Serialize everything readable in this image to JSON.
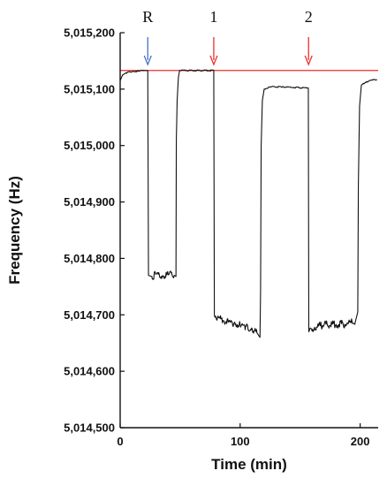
{
  "chart_data": {
    "type": "line",
    "xlabel": "Time (min)",
    "ylabel": "Frequency (Hz)",
    "xlim": [
      0,
      215
    ],
    "ylim": [
      5014500,
      5015200
    ],
    "x_ticks": [
      0,
      100,
      200
    ],
    "x_tick_labels": [
      "0",
      "100",
      "200"
    ],
    "y_ticks": [
      5014500,
      5014600,
      5014700,
      5014800,
      5014900,
      5015000,
      5015100,
      5015200
    ],
    "y_tick_labels": [
      "5,014,500",
      "5,014,600",
      "5,014,700",
      "5,014,800",
      "5,014,900",
      "5,015,000",
      "5,015,100",
      "5,015,200"
    ],
    "reference_line": {
      "y": 5015133,
      "color": "#e8312d"
    },
    "annotations": [
      {
        "label": "R",
        "x": 23,
        "arrow_color": "#4472c4"
      },
      {
        "label": "1",
        "x": 78,
        "arrow_color": "#e8312d"
      },
      {
        "label": "2",
        "x": 157,
        "arrow_color": "#e8312d"
      }
    ],
    "series": [
      {
        "color": "#111111",
        "points": [
          [
            0,
            5015115
          ],
          [
            2,
            5015125
          ],
          [
            5,
            5015129
          ],
          [
            10,
            5015131
          ],
          [
            15,
            5015132
          ],
          [
            20,
            5015133
          ],
          [
            23,
            5015133
          ],
          [
            23.6,
            5014770
          ],
          [
            26,
            5014768
          ],
          [
            30,
            5014772
          ],
          [
            35,
            5014769
          ],
          [
            40,
            5014771
          ],
          [
            45,
            5014770
          ],
          [
            46.5,
            5014768
          ],
          [
            46.8,
            5015010
          ],
          [
            47.5,
            5015080
          ],
          [
            48.5,
            5015120
          ],
          [
            49.5,
            5015133
          ],
          [
            78,
            5015133
          ],
          [
            78.5,
            5014700
          ],
          [
            82,
            5014695
          ],
          [
            86,
            5014690
          ],
          [
            90,
            5014688
          ],
          [
            95,
            5014685
          ],
          [
            100,
            5014682
          ],
          [
            105,
            5014680
          ],
          [
            110,
            5014675
          ],
          [
            114,
            5014668
          ],
          [
            116.5,
            5014660
          ],
          [
            117,
            5014740
          ],
          [
            117.5,
            5015000
          ],
          [
            118.5,
            5015080
          ],
          [
            120,
            5015100
          ],
          [
            125,
            5015104
          ],
          [
            135,
            5015104
          ],
          [
            145,
            5015103
          ],
          [
            155,
            5015102
          ],
          [
            156.8,
            5015102
          ],
          [
            157.2,
            5014670
          ],
          [
            162,
            5014678
          ],
          [
            170,
            5014682
          ],
          [
            180,
            5014683
          ],
          [
            190,
            5014684
          ],
          [
            196,
            5014688
          ],
          [
            198,
            5014705
          ],
          [
            198.5,
            5014930
          ],
          [
            199.5,
            5015070
          ],
          [
            201,
            5015107
          ],
          [
            205,
            5015113
          ],
          [
            210,
            5015116
          ],
          [
            214,
            5015117
          ]
        ]
      }
    ]
  }
}
